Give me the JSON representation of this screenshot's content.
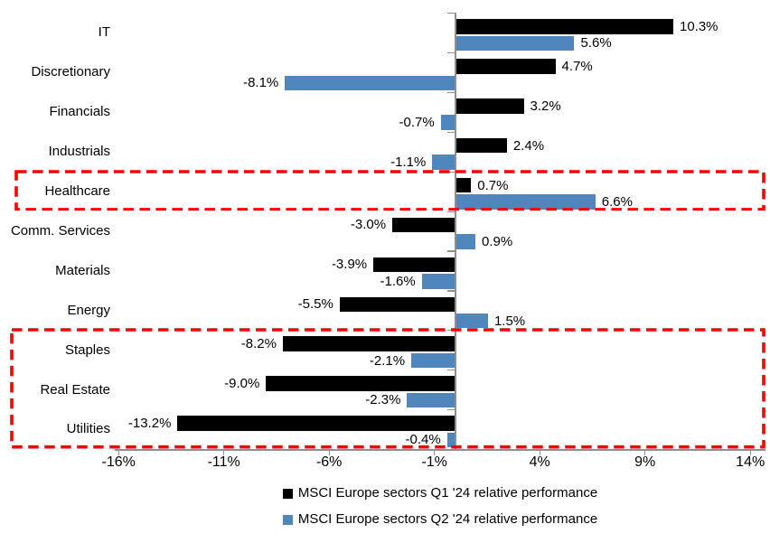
{
  "chart_data": {
    "type": "bar",
    "orientation": "horizontal",
    "title": "",
    "xlabel": "",
    "ylabel": "",
    "grid": false,
    "legend_position": "bottom",
    "categories": [
      "IT",
      "Discretionary",
      "Financials",
      "Industrials",
      "Healthcare",
      "Comm. Services",
      "Materials",
      "Energy",
      "Staples",
      "Real Estate",
      "Utilities"
    ],
    "series": [
      {
        "name": "MSCI Europe sectors Q1 '24 relative performance",
        "color": "#000000",
        "values": [
          10.3,
          4.7,
          3.2,
          2.4,
          0.7,
          -3.0,
          -3.9,
          -5.5,
          -8.2,
          -9.0,
          -13.2
        ],
        "labels": [
          "10.3%",
          "4.7%",
          "3.2%",
          "2.4%",
          "0.7%",
          "-3.0%",
          "-3.9%",
          "-5.5%",
          "-8.2%",
          "-9.0%",
          "-13.2%"
        ]
      },
      {
        "name": "MSCI Europe sectors Q2 '24 relative performance",
        "color": "#4f86bd",
        "values": [
          5.6,
          -8.1,
          -0.7,
          -1.1,
          6.6,
          0.9,
          -1.6,
          1.5,
          -2.1,
          -2.3,
          -0.4
        ],
        "labels": [
          "5.6%",
          "-8.1%",
          "-0.7%",
          "-1.1%",
          "6.6%",
          "0.9%",
          "-1.6%",
          "1.5%",
          "-2.1%",
          "-2.3%",
          "-0.4%"
        ]
      }
    ],
    "x_axis": {
      "tick_labels": [
        "-16%",
        "-11%",
        "-6%",
        "-1%",
        "4%",
        "9%",
        "14%"
      ],
      "tick_values": [
        -16,
        -11,
        -6,
        -1,
        4,
        9,
        14
      ],
      "range": [
        -16.2,
        14.7
      ]
    },
    "highlight_boxes": [
      {
        "rows": [
          "Healthcare"
        ],
        "row_start": 4,
        "row_end": 4,
        "color": "#ff0000",
        "style": "dashed"
      },
      {
        "rows": [
          "Staples",
          "Real Estate",
          "Utilities"
        ],
        "row_start": 8,
        "row_end": 10,
        "color": "#ff0000",
        "style": "dashed"
      }
    ]
  }
}
